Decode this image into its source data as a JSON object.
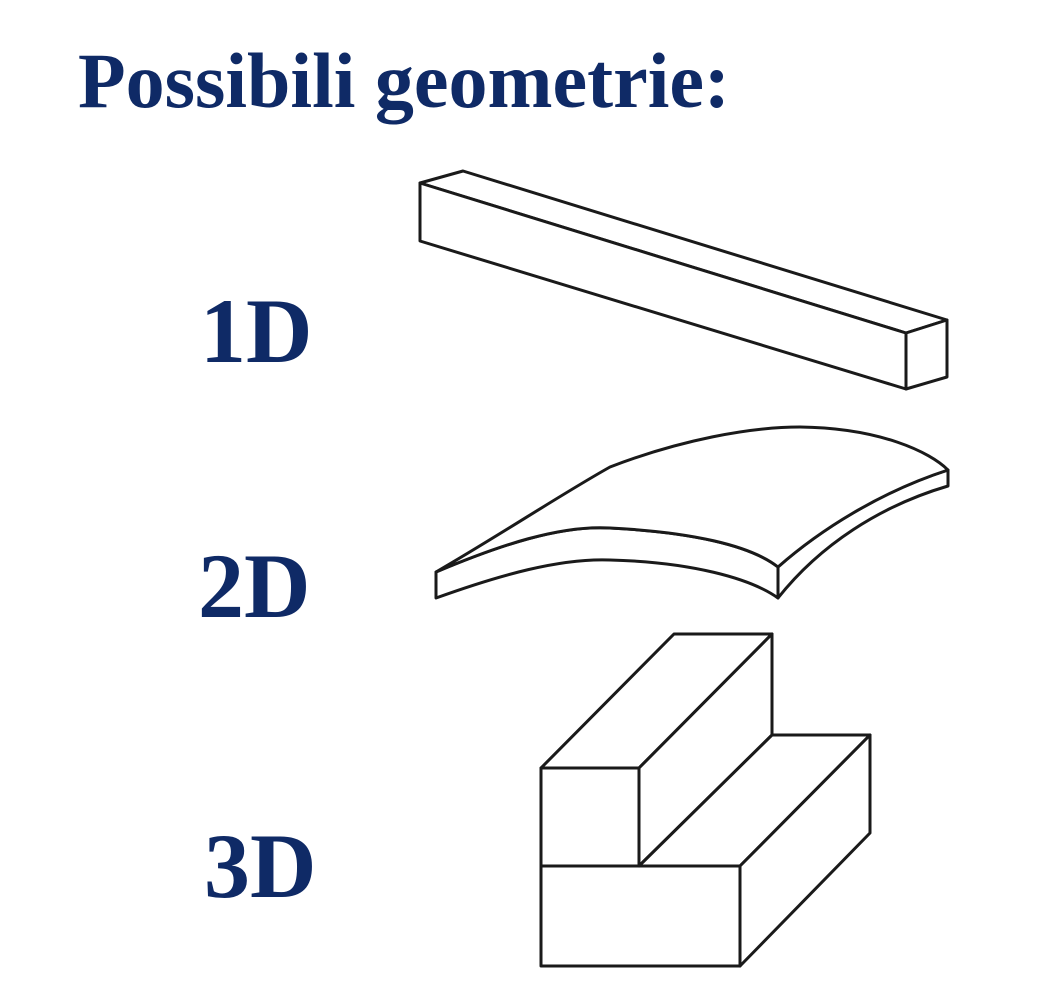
{
  "slide": {
    "title": "Possibili geometrie:",
    "items": [
      {
        "label": "1D",
        "shape": "bar-icon"
      },
      {
        "label": "2D",
        "shape": "curved-shell-icon"
      },
      {
        "label": "3D",
        "shape": "l-shaped-block-icon"
      }
    ],
    "colors": {
      "text": "#0f2a66",
      "stroke": "#1a1a1a",
      "background": "#ffffff"
    }
  }
}
